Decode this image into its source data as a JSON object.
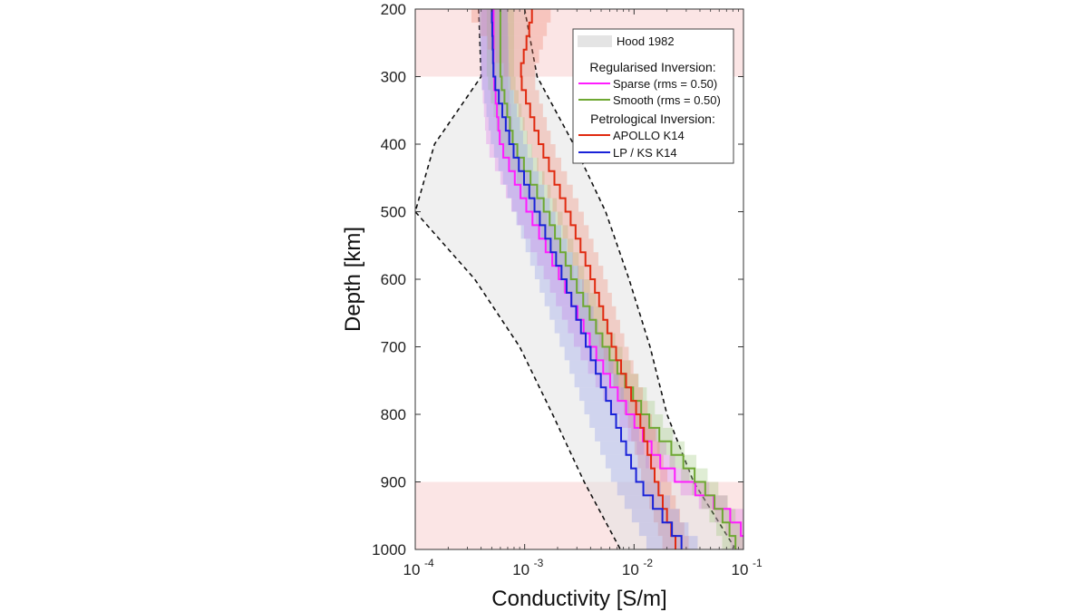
{
  "chart_data": {
    "type": "line",
    "title": "",
    "xlabel": "Conductivity [S/m]",
    "ylabel": "Depth [km]",
    "xscale": "log",
    "xlim": [
      0.0001,
      0.1
    ],
    "ylim": [
      200,
      1000
    ],
    "y_inverted": true,
    "x_ticks": [
      {
        "value": 0.0001,
        "base": "10",
        "exp": "-4"
      },
      {
        "value": 0.001,
        "base": "10",
        "exp": "-3"
      },
      {
        "value": 0.01,
        "base": "10",
        "exp": "-2"
      },
      {
        "value": 0.1,
        "base": "10",
        "exp": "-1"
      }
    ],
    "y_ticks": [
      "200",
      "300",
      "400",
      "500",
      "600",
      "700",
      "800",
      "900",
      "1000"
    ],
    "shaded_depth_bands": [
      {
        "from": 200,
        "to": 300,
        "color": "#f7cfcf"
      },
      {
        "from": 900,
        "to": 1000,
        "color": "#f7cfcf"
      }
    ],
    "hood_1982": {
      "name": "Hood 1982",
      "color": "#e4e4e4",
      "depth": [
        200,
        300,
        400,
        500,
        600,
        700,
        800,
        900,
        1000
      ],
      "lower": [
        0.00038,
        0.0004,
        0.00015,
        0.0001,
        0.00035,
        0.0009,
        0.0018,
        0.0035,
        0.0075
      ],
      "upper": [
        0.001,
        0.0013,
        0.0028,
        0.0055,
        0.009,
        0.014,
        0.02,
        0.035,
        0.085
      ]
    },
    "legend": {
      "hood_label": "Hood 1982",
      "regularised_heading": "Regularised Inversion:",
      "petrological_heading": "Petrological Inversion:"
    },
    "series": [
      {
        "name": "Sparse (rms = 0.50)",
        "color": "#ff1cff",
        "band_color": "#e070e8",
        "depth": [
          200,
          300,
          400,
          500,
          600,
          700,
          760,
          820,
          880,
          920,
          960,
          1000
        ],
        "values": [
          0.00052,
          0.00052,
          0.0006,
          0.0011,
          0.0022,
          0.0042,
          0.0065,
          0.011,
          0.019,
          0.045,
          0.09,
          0.11
        ],
        "band_lower": [
          0.0004,
          0.0004,
          0.00045,
          0.0008,
          0.0016,
          0.003,
          0.0048,
          0.008,
          0.014,
          0.033,
          0.065,
          0.08
        ],
        "band_upper": [
          0.0007,
          0.0007,
          0.0008,
          0.0015,
          0.003,
          0.0055,
          0.009,
          0.015,
          0.026,
          0.06,
          0.12,
          0.13
        ]
      },
      {
        "name": "Smooth (rms = 0.50)",
        "color": "#6ea832",
        "band_color": "#9cc87a",
        "depth": [
          200,
          300,
          400,
          500,
          600,
          700,
          760,
          820,
          880,
          920,
          960,
          1000
        ],
        "values": [
          0.0006,
          0.0006,
          0.0008,
          0.0016,
          0.0028,
          0.0055,
          0.009,
          0.015,
          0.032,
          0.05,
          0.07,
          0.09
        ],
        "band_lower": [
          0.00045,
          0.00045,
          0.0006,
          0.0012,
          0.0021,
          0.0042,
          0.007,
          0.011,
          0.024,
          0.038,
          0.053,
          0.068
        ],
        "band_upper": [
          0.0008,
          0.0008,
          0.0011,
          0.0021,
          0.0037,
          0.0072,
          0.012,
          0.02,
          0.042,
          0.066,
          0.092,
          0.11
        ]
      },
      {
        "name": "APOLLO K14",
        "color": "#e02a10",
        "band_color": "#f0836c",
        "depth": [
          200,
          300,
          400,
          500,
          600,
          700,
          800,
          900,
          1000
        ],
        "values": [
          0.0012,
          0.0009,
          0.0014,
          0.0025,
          0.0042,
          0.0065,
          0.011,
          0.016,
          0.025
        ],
        "band_lower": [
          0.0003,
          0.0007,
          0.0011,
          0.0019,
          0.0032,
          0.005,
          0.0085,
          0.012,
          0.019
        ],
        "band_upper": [
          0.0018,
          0.0012,
          0.0018,
          0.0033,
          0.0055,
          0.0085,
          0.014,
          0.021,
          0.033
        ]
      },
      {
        "name": "LP / KS K14",
        "color": "#1a22d8",
        "band_color": "#8d98e8",
        "depth": [
          200,
          300,
          400,
          500,
          600,
          700,
          800,
          900,
          1000
        ],
        "values": [
          0.0005,
          0.00052,
          0.00075,
          0.0013,
          0.0023,
          0.0038,
          0.0065,
          0.011,
          0.03
        ],
        "band_lower": [
          0.00038,
          0.0004,
          0.0005,
          0.0008,
          0.0013,
          0.0022,
          0.0037,
          0.0065,
          0.014
        ],
        "band_upper": [
          0.0007,
          0.00072,
          0.001,
          0.0018,
          0.0033,
          0.0055,
          0.0095,
          0.016,
          0.042
        ]
      }
    ]
  }
}
